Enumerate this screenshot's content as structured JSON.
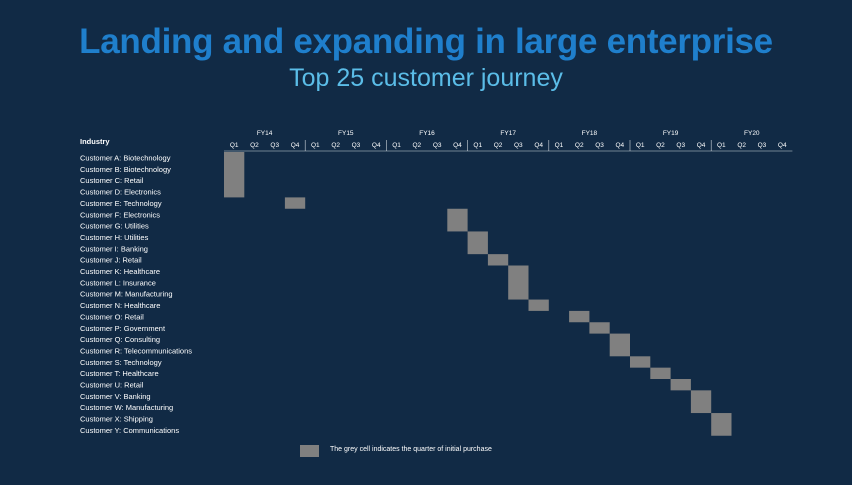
{
  "title": "Landing and expanding in large enterprise",
  "subtitle": "Top 25 customer journey",
  "colors": {
    "background": "#112a45",
    "title": "#1f7fcc",
    "subtitle": "#5bbde8",
    "cell": "#808080"
  },
  "legend": {
    "text": "The grey cell indicates the quarter of initial purchase"
  },
  "chart_data": {
    "type": "table",
    "row_header": "Industry",
    "fiscal_years": [
      "FY14",
      "FY15",
      "FY16",
      "FY17",
      "FY18",
      "FY19",
      "FY20"
    ],
    "quarters": [
      "Q1",
      "Q2",
      "Q3",
      "Q4"
    ],
    "rows": [
      {
        "label": "Customer A: Biotechnology",
        "initial_purchase": "FY14 Q1"
      },
      {
        "label": "Customer B: Biotechnology",
        "initial_purchase": "FY14 Q1"
      },
      {
        "label": "Customer C: Retail",
        "initial_purchase": "FY14 Q1"
      },
      {
        "label": "Customer D: Electronics",
        "initial_purchase": "FY14 Q1"
      },
      {
        "label": "Customer E: Technology",
        "initial_purchase": "FY14 Q4"
      },
      {
        "label": "Customer F: Electronics",
        "initial_purchase": "FY16 Q4"
      },
      {
        "label": "Customer G: Utilities",
        "initial_purchase": "FY16 Q4"
      },
      {
        "label": "Customer H: Utilities",
        "initial_purchase": "FY17 Q1"
      },
      {
        "label": "Customer I: Banking",
        "initial_purchase": "FY17 Q1"
      },
      {
        "label": "Customer J: Retail",
        "initial_purchase": "FY17 Q2"
      },
      {
        "label": "Customer K: Healthcare",
        "initial_purchase": "FY17 Q3"
      },
      {
        "label": "Customer L: Insurance",
        "initial_purchase": "FY17 Q3"
      },
      {
        "label": "Customer M: Manufacturing",
        "initial_purchase": "FY17 Q3"
      },
      {
        "label": "Customer N: Healthcare",
        "initial_purchase": "FY17 Q4"
      },
      {
        "label": "Customer O: Retail",
        "initial_purchase": "FY18 Q2"
      },
      {
        "label": "Customer P: Government",
        "initial_purchase": "FY18 Q3"
      },
      {
        "label": "Customer Q: Consulting",
        "initial_purchase": "FY18 Q4"
      },
      {
        "label": "Customer R: Telecommunications",
        "initial_purchase": "FY18 Q4"
      },
      {
        "label": "Customer S: Technology",
        "initial_purchase": "FY19 Q1"
      },
      {
        "label": "Customer T: Healthcare",
        "initial_purchase": "FY19 Q2"
      },
      {
        "label": "Customer U: Retail",
        "initial_purchase": "FY19 Q3"
      },
      {
        "label": "Customer V: Banking",
        "initial_purchase": "FY19 Q4"
      },
      {
        "label": "Customer W: Manufacturing",
        "initial_purchase": "FY19 Q4"
      },
      {
        "label": "Customer X: Shipping",
        "initial_purchase": "FY20 Q1"
      },
      {
        "label": "Customer Y: Communications",
        "initial_purchase": "FY20 Q1"
      }
    ]
  }
}
